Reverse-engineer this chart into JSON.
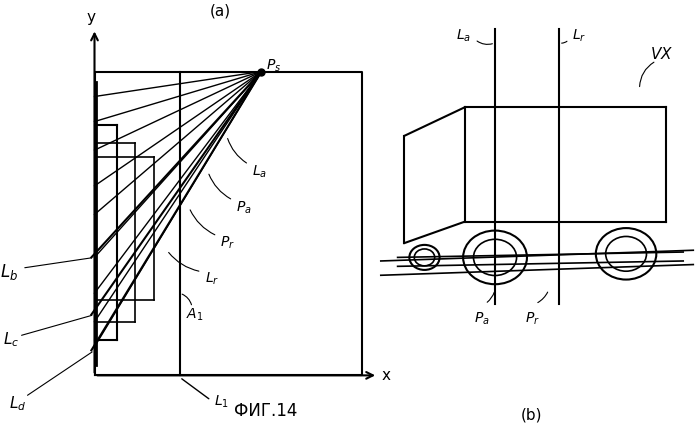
{
  "bg_color": "#ffffff",
  "line_color": "#000000",
  "fig_width": 7.0,
  "fig_height": 4.29,
  "title": "ФИГ.14",
  "label_a": "(a)",
  "label_b": "(b)"
}
